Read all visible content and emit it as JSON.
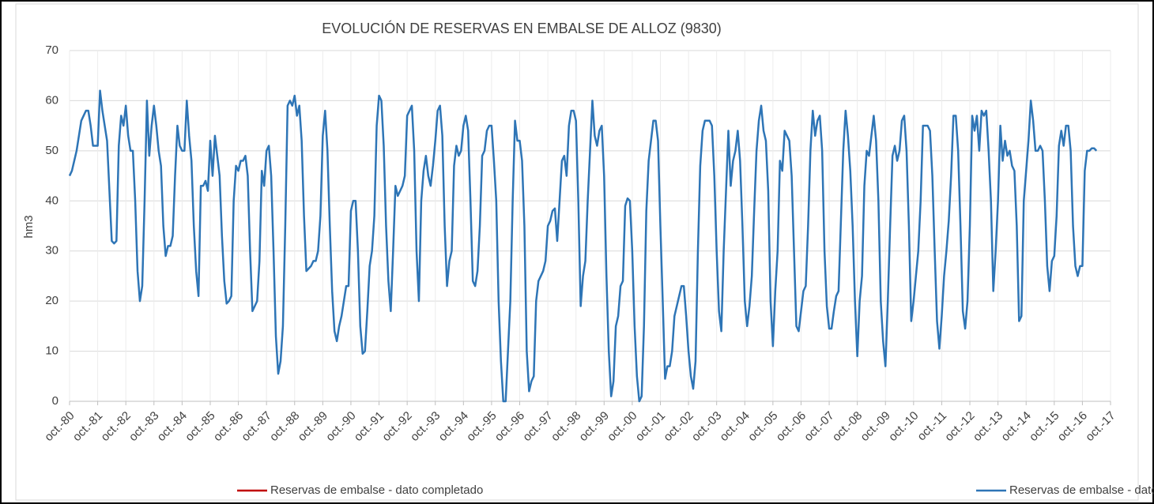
{
  "chart_data": {
    "type": "line",
    "title": "EVOLUCIÓN DE RESERVAS EN EMBALSE DE ALLOZ (9830)",
    "y_label": "hm3",
    "categories": [
      "oct.-80",
      null,
      null,
      null,
      null,
      null,
      null,
      null,
      null,
      null,
      null,
      null,
      "oct.-81",
      null,
      null,
      null,
      null,
      null,
      null,
      null,
      null,
      null,
      null,
      null,
      "oct.-82",
      null,
      null,
      null,
      null,
      null,
      null,
      null,
      null,
      null,
      null,
      null,
      "oct.-83",
      null,
      null,
      null,
      null,
      null,
      null,
      null,
      null,
      null,
      null,
      null,
      "oct.-84",
      null,
      null,
      null,
      null,
      null,
      null,
      null,
      null,
      null,
      null,
      null,
      "oct.-85",
      null,
      null,
      null,
      null,
      null,
      null,
      null,
      null,
      null,
      null,
      null,
      "oct.-86",
      null,
      null,
      null,
      null,
      null,
      null,
      null,
      null,
      null,
      null,
      null,
      "oct.-87",
      null,
      null,
      null,
      null,
      null,
      null,
      null,
      null,
      null,
      null,
      null,
      "oct.-88",
      null,
      null,
      null,
      null,
      null,
      null,
      null,
      null,
      null,
      null,
      null,
      "oct.-89",
      null,
      null,
      null,
      null,
      null,
      null,
      null,
      null,
      null,
      null,
      null,
      "oct.-90",
      null,
      null,
      null,
      null,
      null,
      null,
      null,
      null,
      null,
      null,
      null,
      "oct.-91",
      null,
      null,
      null,
      null,
      null,
      null,
      null,
      null,
      null,
      null,
      null,
      "oct.-92",
      null,
      null,
      null,
      null,
      null,
      null,
      null,
      null,
      null,
      null,
      null,
      "oct.-93",
      null,
      null,
      null,
      null,
      null,
      null,
      null,
      null,
      null,
      null,
      null,
      "oct.-94",
      null,
      null,
      null,
      null,
      null,
      null,
      null,
      null,
      null,
      null,
      null,
      "oct.-95",
      null,
      null,
      null,
      null,
      null,
      null,
      null,
      null,
      null,
      null,
      null,
      "oct.-96",
      null,
      null,
      null,
      null,
      null,
      null,
      null,
      null,
      null,
      null,
      null,
      "oct.-97",
      null,
      null,
      null,
      null,
      null,
      null,
      null,
      null,
      null,
      null,
      null,
      "oct.-98",
      null,
      null,
      null,
      null,
      null,
      null,
      null,
      null,
      null,
      null,
      null,
      "oct.-99",
      null,
      null,
      null,
      null,
      null,
      null,
      null,
      null,
      null,
      null,
      null,
      "oct.-00",
      null,
      null,
      null,
      null,
      null,
      null,
      null,
      null,
      null,
      null,
      null,
      "oct.-01",
      null,
      null,
      null,
      null,
      null,
      null,
      null,
      null,
      null,
      null,
      null,
      "oct.-02",
      null,
      null,
      null,
      null,
      null,
      null,
      null,
      null,
      null,
      null,
      null,
      "oct.-03",
      null,
      null,
      null,
      null,
      null,
      null,
      null,
      null,
      null,
      null,
      null,
      "oct.-04",
      null,
      null,
      null,
      null,
      null,
      null,
      null,
      null,
      null,
      null,
      null,
      "oct.-05",
      null,
      null,
      null,
      null,
      null,
      null,
      null,
      null,
      null,
      null,
      null,
      "oct.-06",
      null,
      null,
      null,
      null,
      null,
      null,
      null,
      null,
      null,
      null,
      null,
      "oct.-07",
      null,
      null,
      null,
      null,
      null,
      null,
      null,
      null,
      null,
      null,
      null,
      "oct.-08",
      null,
      null,
      null,
      null,
      null,
      null,
      null,
      null,
      null,
      null,
      null,
      "oct.-09",
      null,
      null,
      null,
      null,
      null,
      null,
      null,
      null,
      null,
      null,
      null,
      "oct.-10",
      null,
      null,
      null,
      null,
      null,
      null,
      null,
      null,
      null,
      null,
      null,
      "oct.-11",
      null,
      null,
      null,
      null,
      null,
      null,
      null,
      null,
      null,
      null,
      null,
      "oct.-12",
      null,
      null,
      null,
      null,
      null,
      null,
      null,
      null,
      null,
      null,
      null,
      "oct.-13",
      null,
      null,
      null,
      null,
      null,
      null,
      null,
      null,
      null,
      null,
      null,
      "oct.-14",
      null,
      null,
      null,
      null,
      null,
      null,
      null,
      null,
      null,
      null,
      null,
      "oct.-15",
      null,
      null,
      null,
      null,
      null,
      null,
      null,
      null,
      null,
      null,
      null,
      "oct.-16",
      null,
      null,
      null,
      null,
      null,
      null,
      null,
      null,
      null,
      null,
      null,
      "oct.-17"
    ],
    "series": [
      {
        "name": "Reservas de embalse - dato completado",
        "color": "#c00000",
        "values": [
          null,
          null,
          null,
          null,
          null,
          null,
          null,
          null,
          null,
          null,
          null,
          null,
          null,
          null,
          null,
          null,
          null,
          null,
          null,
          null,
          null,
          null,
          null,
          null,
          null,
          null,
          null,
          null,
          null,
          null,
          null,
          null,
          null,
          null,
          null,
          null,
          null,
          null,
          null,
          null,
          null,
          null,
          null,
          null,
          null,
          null,
          null,
          null,
          null,
          null,
          null,
          null,
          null,
          null,
          null,
          null,
          null,
          null,
          null,
          null,
          null,
          null,
          null,
          null,
          null,
          null,
          null,
          null,
          null,
          null,
          null,
          null,
          null,
          null,
          null,
          null,
          null,
          null,
          null,
          null,
          null,
          null,
          null,
          null,
          null,
          null,
          null,
          null,
          null,
          null,
          null,
          null,
          null,
          null,
          null,
          null,
          null,
          null,
          null,
          null,
          null,
          null,
          null,
          null,
          null,
          null,
          null,
          null,
          null,
          null,
          null,
          null,
          null,
          null,
          null,
          null,
          null,
          null,
          null,
          null,
          null,
          null,
          null,
          null,
          null,
          null,
          null,
          null,
          null,
          null,
          null,
          null,
          null,
          null,
          null,
          null,
          null,
          null,
          null,
          null,
          null,
          null,
          null,
          null,
          null,
          null,
          null,
          null,
          null,
          null,
          null,
          null,
          null,
          null,
          null,
          null,
          null,
          null,
          null,
          null,
          null,
          null,
          null,
          null,
          null,
          null,
          null,
          null,
          null,
          null,
          null,
          null,
          null,
          null,
          null,
          null,
          null,
          null,
          null,
          null,
          null,
          null,
          null,
          null,
          null,
          null,
          null,
          null,
          null,
          null,
          null,
          null,
          null,
          null,
          null,
          null,
          null,
          null,
          null,
          null,
          null,
          null,
          null,
          null,
          null,
          null,
          null,
          null,
          null,
          null,
          null,
          null,
          null,
          null,
          null,
          null,
          null,
          null,
          null,
          null,
          null,
          null,
          null,
          null,
          null,
          null,
          null,
          null,
          null,
          null,
          null,
          null,
          null,
          null,
          null,
          null,
          null,
          null,
          null,
          null,
          null,
          null,
          null,
          null,
          null,
          null,
          null,
          null,
          null,
          null,
          null,
          null,
          null,
          null,
          null,
          null,
          null,
          null,
          null,
          null,
          null,
          null,
          null,
          null,
          null,
          null,
          null,
          null,
          null,
          null,
          null,
          null,
          null,
          null,
          null,
          null,
          null,
          null,
          null,
          null,
          null,
          null,
          null,
          null,
          null,
          null,
          null,
          null,
          null,
          null,
          null,
          null,
          null,
          null,
          null,
          null,
          null,
          null,
          null,
          null,
          null,
          null,
          null,
          null,
          null,
          null,
          null,
          null,
          null,
          null,
          null,
          null,
          null,
          null,
          null,
          null,
          null,
          null,
          null,
          null,
          null,
          null,
          null,
          null,
          null,
          null,
          null,
          null,
          null,
          null,
          null,
          null,
          null,
          null,
          null,
          null,
          null,
          null,
          null,
          null,
          null,
          null,
          null,
          null,
          null,
          null,
          null,
          null,
          null,
          null,
          null,
          null,
          null,
          null,
          null,
          null,
          null,
          null,
          null,
          null,
          null,
          null,
          null,
          null,
          null,
          null,
          null,
          null,
          null,
          null,
          null,
          null,
          null,
          null,
          null,
          null,
          null,
          null,
          null,
          null,
          null,
          null,
          null,
          null,
          null,
          null,
          null,
          null,
          null,
          null,
          null,
          null,
          null,
          null,
          null,
          null,
          null,
          null,
          null,
          null,
          null,
          null,
          null,
          null,
          null,
          null,
          null,
          null,
          null,
          null,
          null,
          null,
          null,
          null,
          null,
          null,
          null,
          null,
          null,
          null,
          null,
          null,
          null,
          null,
          null,
          null,
          null,
          null,
          null,
          null,
          null,
          null,
          null,
          null,
          null,
          null,
          null,
          null,
          null,
          null,
          null,
          null,
          null,
          null,
          null
        ]
      },
      {
        "name": "Reservas de embalse - dato medido",
        "color": "#2e75b6",
        "values": [
          45,
          46,
          48,
          50,
          53,
          56,
          57,
          58,
          58,
          55,
          51,
          51,
          51,
          62,
          58,
          55,
          52,
          42,
          32,
          31.5,
          32,
          51,
          57,
          55,
          59,
          53,
          50,
          50,
          40,
          26,
          20,
          23,
          40,
          60,
          49,
          55,
          59,
          55,
          50,
          47,
          35,
          29,
          31,
          31,
          33,
          45,
          55,
          51,
          50,
          50,
          60,
          53,
          48,
          35,
          26,
          21,
          43,
          43,
          44,
          42,
          52,
          45,
          53,
          49,
          45,
          33,
          24,
          19.5,
          20,
          21,
          40,
          47,
          46,
          48,
          48,
          49,
          45,
          30,
          18,
          19,
          20,
          28,
          46,
          43,
          50,
          51,
          45,
          30,
          13,
          5.5,
          8,
          15,
          35,
          59,
          60,
          59,
          61,
          57,
          59,
          52,
          37,
          26,
          26.5,
          27,
          28,
          28,
          30,
          37,
          53,
          58,
          50,
          35,
          22,
          14,
          12,
          15,
          17,
          20,
          23,
          23,
          38,
          40,
          40,
          30,
          15,
          9.5,
          10,
          18,
          27,
          30,
          37,
          55,
          61,
          60,
          51,
          35,
          24,
          18,
          30,
          43,
          41,
          42,
          43,
          45,
          57,
          58,
          59,
          50,
          30,
          20,
          40,
          46,
          49,
          45,
          43,
          47,
          52,
          58,
          59,
          53,
          35,
          23,
          28,
          30,
          47,
          51,
          49,
          50,
          55,
          57,
          54,
          40,
          24,
          23,
          26,
          35,
          49,
          50,
          54,
          55,
          55,
          48,
          40,
          20,
          8,
          0,
          0,
          10,
          20,
          40,
          56,
          52,
          52,
          48,
          35,
          10,
          2,
          4,
          5,
          20,
          24,
          25,
          26,
          28,
          35,
          36,
          38,
          38.5,
          32,
          40,
          48,
          49,
          45,
          55,
          58,
          58,
          56,
          40,
          19,
          25,
          28,
          40,
          50,
          60,
          53,
          51,
          54,
          55,
          45,
          25,
          10,
          1,
          4,
          15,
          17,
          23,
          24,
          39,
          40.5,
          40,
          30,
          15,
          5,
          0,
          1,
          15,
          38,
          48,
          52,
          56,
          56,
          52,
          35,
          20,
          4.5,
          7,
          7,
          10,
          17,
          19,
          21,
          23,
          23,
          17,
          10,
          5,
          2.5,
          8,
          30,
          47,
          54,
          56,
          56,
          56,
          55,
          45,
          30,
          18,
          14,
          30,
          42,
          54,
          43,
          48,
          50,
          54,
          48,
          35,
          20,
          15,
          19,
          25,
          38,
          50,
          56,
          59,
          54,
          52,
          42,
          20,
          11,
          22,
          30,
          48,
          46,
          54,
          53,
          52,
          45,
          30,
          15,
          14,
          18,
          22,
          23,
          35,
          50,
          58,
          53,
          56,
          57,
          50,
          30,
          19,
          14.5,
          14.5,
          18,
          21,
          22,
          36,
          50,
          58,
          53,
          46,
          35,
          20,
          9,
          20,
          25,
          43,
          50,
          49,
          53,
          57,
          52,
          40,
          20,
          12,
          7,
          20,
          35,
          49,
          51,
          48,
          50,
          56,
          57,
          50,
          35,
          16,
          20,
          25,
          30,
          40,
          55,
          55,
          55,
          54,
          45,
          30,
          16,
          10.5,
          17,
          25,
          30,
          36,
          45,
          57,
          57,
          50,
          35,
          18,
          14.5,
          20,
          35,
          57,
          54,
          57,
          50,
          58,
          57,
          58,
          50,
          40,
          22,
          30,
          40,
          55,
          48,
          52,
          49,
          50,
          47,
          46,
          35,
          16,
          17,
          40,
          46,
          52,
          60,
          56,
          50,
          50,
          51,
          50,
          40,
          27,
          22,
          28,
          29,
          37,
          51,
          54,
          51,
          55,
          55,
          50,
          35,
          27,
          25,
          27,
          27,
          46,
          50,
          50,
          50.5,
          50.5,
          50,
          null,
          null,
          null,
          null,
          null,
          null
        ]
      }
    ],
    "ylim": [
      0,
      70
    ],
    "yticks": [
      0,
      10,
      20,
      30,
      40,
      50,
      60,
      70
    ],
    "grid": true,
    "legend": "bottom"
  }
}
